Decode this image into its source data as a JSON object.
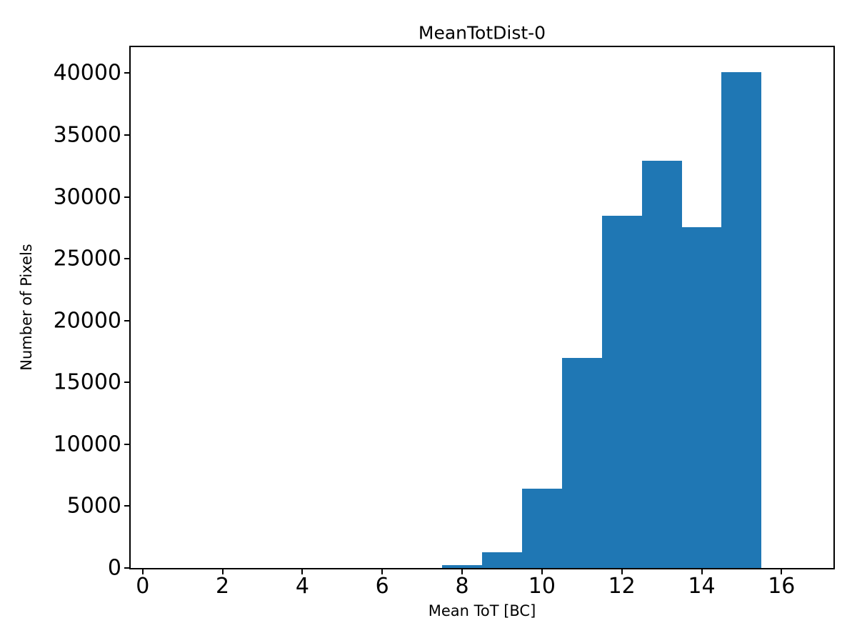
{
  "chart_data": {
    "type": "histogram",
    "title": "MeanTotDist-0",
    "xlabel": "Mean ToT [BC]",
    "ylabel": "Number of Pixels",
    "bar_color": "#1f77b4",
    "background_color": "#ffffff",
    "bin_edges": [
      7.5,
      8.5,
      9.5,
      10.5,
      11.5,
      12.5,
      13.5,
      14.5,
      15.5
    ],
    "counts": [
      250,
      1250,
      6400,
      17000,
      28450,
      32900,
      27550,
      40100
    ],
    "xlim": [
      -0.3,
      17.3
    ],
    "ylim": [
      0,
      42100
    ],
    "xticks": [
      0,
      2,
      4,
      6,
      8,
      10,
      12,
      14,
      16
    ],
    "yticks": [
      0,
      5000,
      10000,
      15000,
      20000,
      25000,
      30000,
      35000,
      40000
    ],
    "grid": false,
    "legend_position": "none"
  }
}
